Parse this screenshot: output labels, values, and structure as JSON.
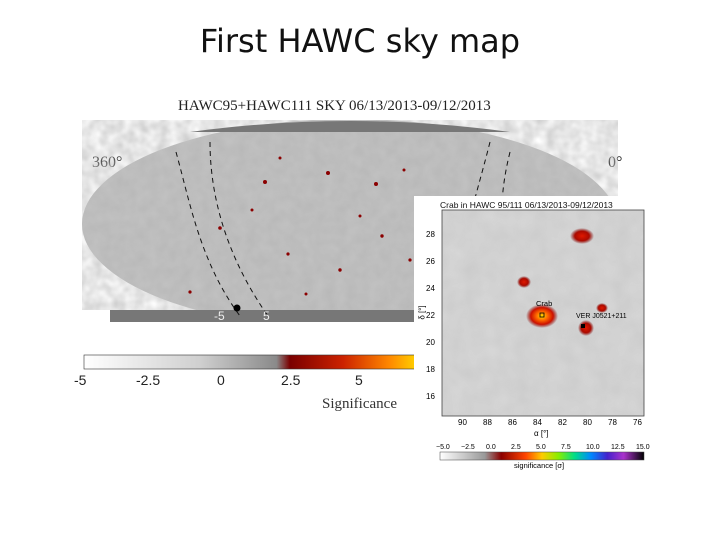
{
  "slide": {
    "title": "First HAWC sky map"
  },
  "skymap": {
    "title": "HAWC95+HAWC111 SKY 06/13/2013-09/12/2013",
    "ra_left_label": "360°",
    "ra_right_label": "0°",
    "dec_labels": [
      "-5",
      "5"
    ]
  },
  "colorbar": {
    "label": "Significance",
    "ticks": [
      "-5",
      "-2.5",
      "0",
      "2.5",
      "5"
    ]
  },
  "inset": {
    "title": "Crab in HAWC 95/111 06/13/2013-09/12/2013",
    "y_ticks": [
      "28",
      "26",
      "24",
      "22",
      "20",
      "18",
      "16"
    ],
    "x_ticks": [
      "90",
      "88",
      "86",
      "84",
      "82",
      "80",
      "78",
      "76"
    ],
    "y_label": "δ [°]",
    "x_label": "α [°]",
    "source_labels": [
      "Crab",
      "VER J0521+211"
    ],
    "colorbar": {
      "ticks": [
        "−5.0",
        "−2.5",
        "0.0",
        "2.5",
        "5.0",
        "7.5",
        "10.0",
        "12.5",
        "15.0"
      ],
      "label": "significance [σ]"
    }
  }
}
